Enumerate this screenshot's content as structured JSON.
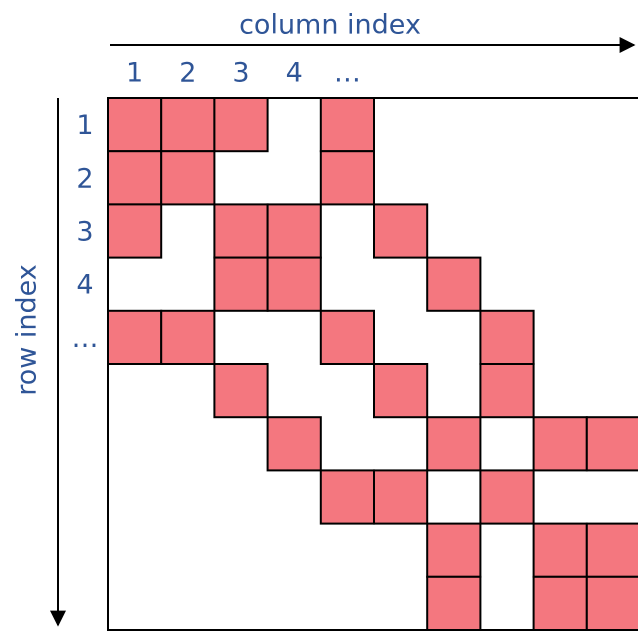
{
  "column_axis": {
    "label": "column index",
    "ticks": [
      "1",
      "2",
      "3",
      "4",
      "…"
    ]
  },
  "row_axis": {
    "label": "row index",
    "ticks": [
      "1",
      "2",
      "3",
      "4",
      "…"
    ]
  }
}
